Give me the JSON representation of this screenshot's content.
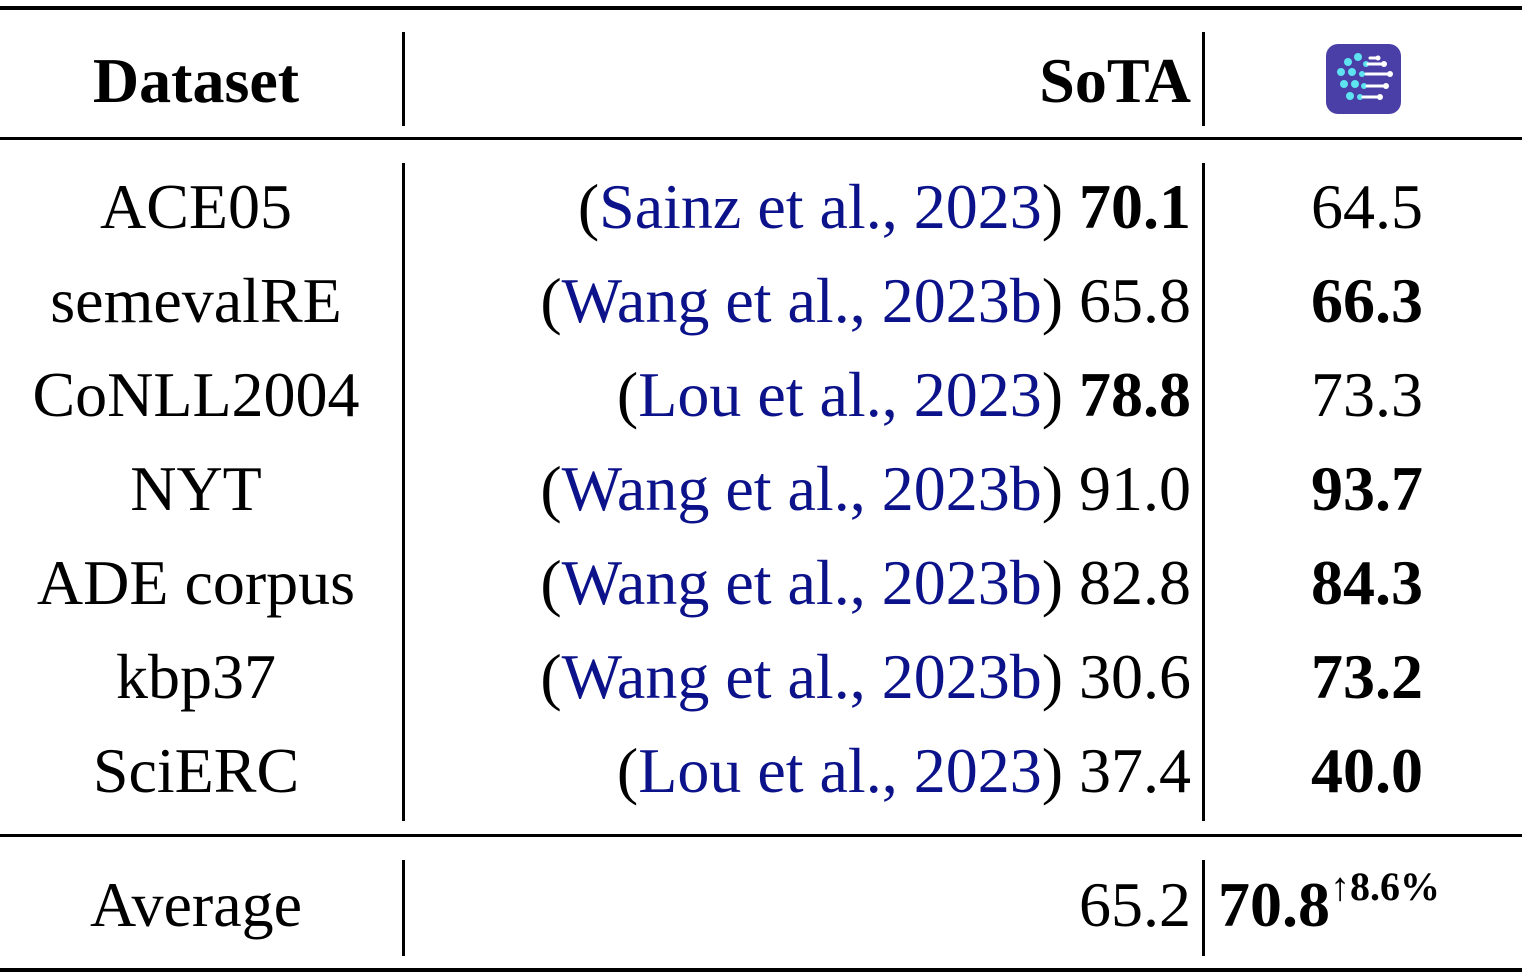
{
  "header": {
    "dataset": "Dataset",
    "sota": "SoTA",
    "ours_icon": "brain-circuit-logo-icon"
  },
  "rows": [
    {
      "dataset": "ACE05",
      "cite": "Sainz et al., 2023",
      "sota": "70.1",
      "ours": "64.5",
      "sota_bold": true,
      "ours_bold": false
    },
    {
      "dataset": "semevalRE",
      "cite": "Wang et al., 2023b",
      "sota": "65.8",
      "ours": "66.3",
      "sota_bold": false,
      "ours_bold": true
    },
    {
      "dataset": "CoNLL2004",
      "cite": "Lou et al., 2023",
      "sota": "78.8",
      "ours": "73.3",
      "sota_bold": true,
      "ours_bold": false
    },
    {
      "dataset": "NYT",
      "cite": "Wang et al., 2023b",
      "sota": "91.0",
      "ours": "93.7",
      "sota_bold": false,
      "ours_bold": true
    },
    {
      "dataset": "ADE corpus",
      "cite": "Wang et al., 2023b",
      "sota": "82.8",
      "ours": "84.3",
      "sota_bold": false,
      "ours_bold": true
    },
    {
      "dataset": "kbp37",
      "cite": "Wang et al., 2023b",
      "sota": "30.6",
      "ours": "73.2",
      "sota_bold": false,
      "ours_bold": true
    },
    {
      "dataset": "SciERC",
      "cite": "Lou et al., 2023",
      "sota": "37.4",
      "ours": "40.0",
      "sota_bold": false,
      "ours_bold": true
    }
  ],
  "average": {
    "label": "Average",
    "sota": "65.2",
    "ours": "70.8",
    "ours_gain": "↑8.6%"
  },
  "colors": {
    "citation": "#0b128a",
    "logo_background": "#4a3fa6",
    "logo_foreground": "#5ee3f0"
  }
}
